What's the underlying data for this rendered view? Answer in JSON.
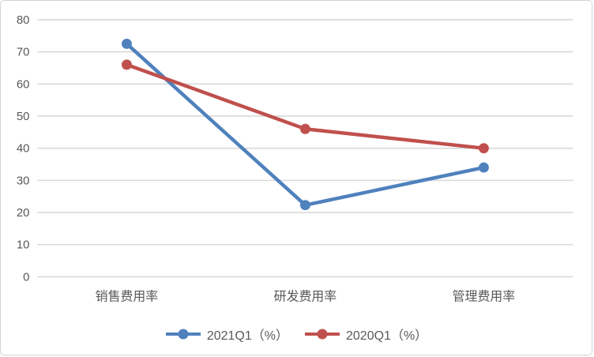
{
  "chart_data": {
    "type": "line",
    "categories": [
      "销售费用率",
      "研发费用率",
      "管理费用率"
    ],
    "series": [
      {
        "name": "2021Q1（%）",
        "color": "#4F81BD",
        "values": [
          72.5,
          22.3,
          34
        ]
      },
      {
        "name": "2020Q1（%）",
        "color": "#C0504D",
        "values": [
          66,
          46,
          40
        ]
      }
    ],
    "title": "",
    "xlabel": "",
    "ylabel": "",
    "ylim": [
      0,
      80
    ],
    "yticks": [
      0,
      10,
      20,
      30,
      40,
      50,
      60,
      70,
      80
    ],
    "grid": true,
    "legend_position": "bottom"
  },
  "colors": {
    "gridline": "#d9d9d9",
    "axis_text": "#595959",
    "card_border": "#d3d3d3",
    "background": "#ffffff"
  }
}
